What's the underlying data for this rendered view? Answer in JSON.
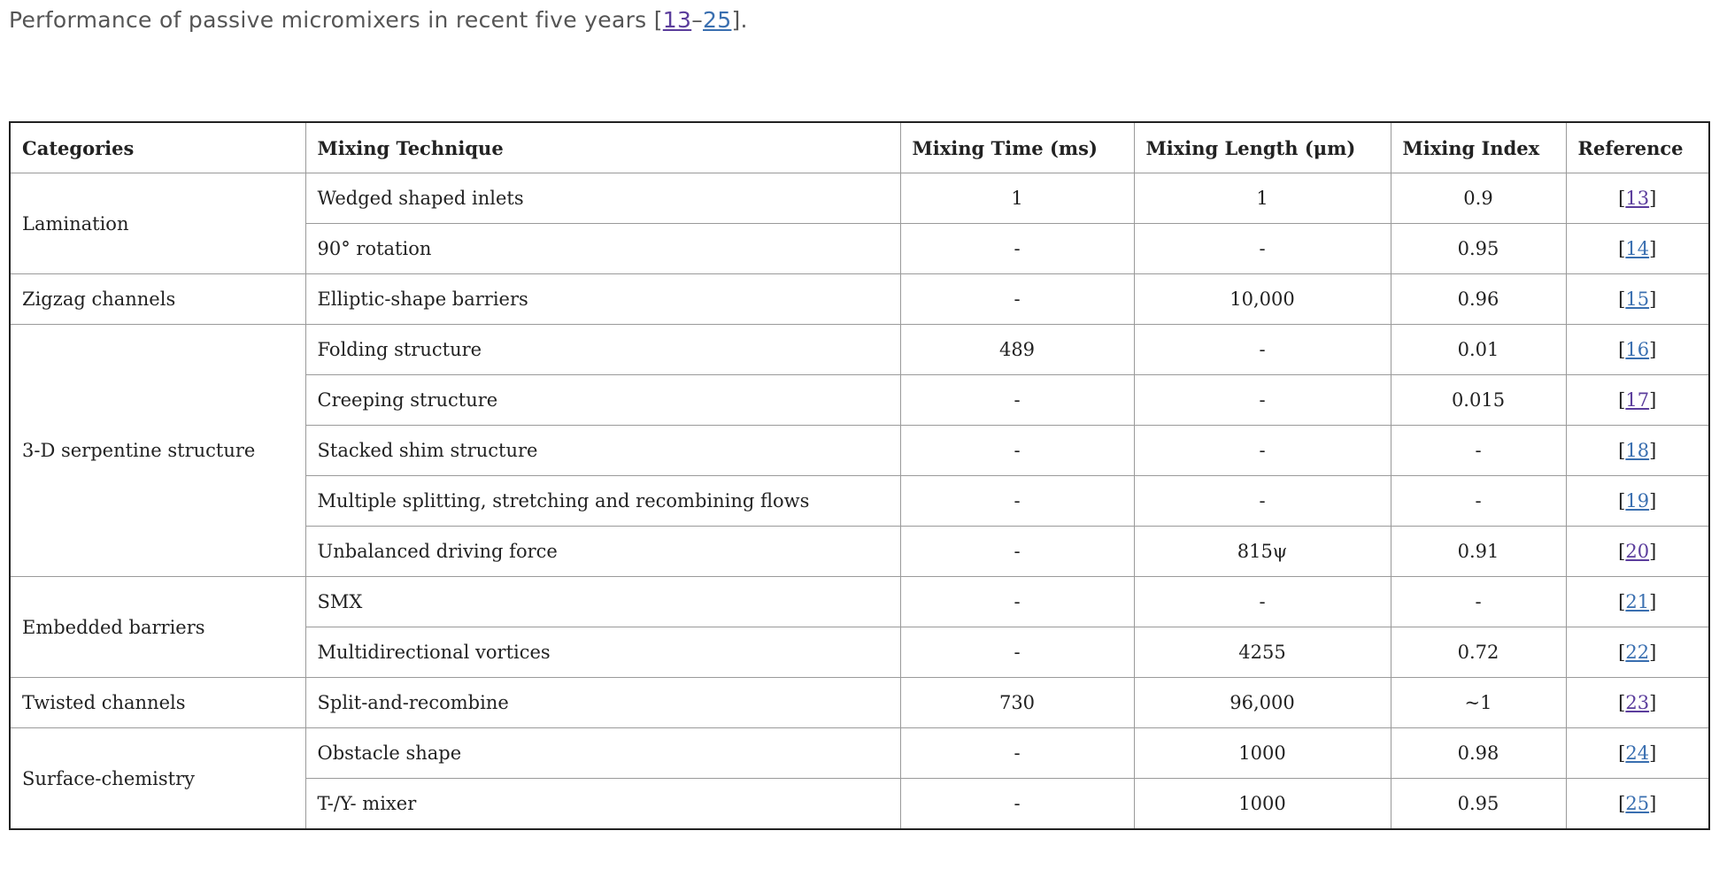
{
  "caption": {
    "prefix": "Performance of passive micromixers in recent five years [",
    "links": [
      "13",
      "25"
    ],
    "separator": "–",
    "suffix": "]."
  },
  "table": {
    "header": [
      "Categories",
      "Mixing Technique",
      "Mixing Time (ms)",
      "Mixing Length (μm)",
      "Mixing Index",
      "Reference"
    ],
    "brackets": [
      "[",
      "]"
    ],
    "groups": [
      {
        "category": "Lamination",
        "rows": [
          [
            "Wedged shaped inlets",
            "1",
            "1",
            "0.9",
            "13"
          ],
          [
            "90° rotation",
            "-",
            "-",
            "0.95",
            "14"
          ]
        ]
      },
      {
        "category": "Zigzag channels",
        "rows": [
          [
            "Elliptic-shape barriers",
            "-",
            "10,000",
            "0.96",
            "15"
          ]
        ]
      },
      {
        "category": "3-D serpentine structure",
        "rows": [
          [
            "Folding structure",
            "489",
            "-",
            "0.01",
            "16"
          ],
          [
            "Creeping structure",
            "-",
            "-",
            "0.015",
            "17"
          ],
          [
            "Stacked shim structure",
            "-",
            "-",
            "-",
            "18"
          ],
          [
            "Multiple splitting, stretching and recombining flows",
            "-",
            "-",
            "-",
            "19"
          ],
          [
            "Unbalanced driving force",
            "-",
            "815ψ",
            "0.91",
            "20"
          ]
        ]
      },
      {
        "category": "Embedded barriers",
        "rows": [
          [
            "SMX",
            "-",
            "-",
            "-",
            "21"
          ],
          [
            "Multidirectional vortices",
            "-",
            "4255",
            "0.72",
            "22"
          ]
        ]
      },
      {
        "category": "Twisted channels",
        "rows": [
          [
            "Split-and-recombine",
            "730",
            "96,000",
            "~1",
            "23"
          ]
        ]
      },
      {
        "category": "Surface-chemistry",
        "rows": [
          [
            "Obstacle shape",
            "-",
            "1000",
            "0.98",
            "24"
          ],
          [
            "T-/Y- mixer",
            "-",
            "1000",
            "0.95",
            "25"
          ]
        ]
      }
    ]
  }
}
